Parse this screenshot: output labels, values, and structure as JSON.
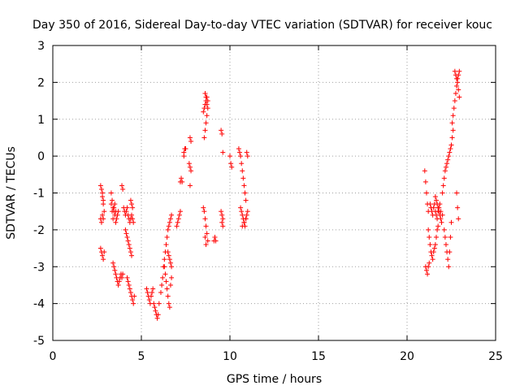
{
  "chart_data": {
    "type": "scatter",
    "title": "Day 350 of 2016, Sidereal Day-to-day VTEC variation (SDTVAR) for receiver kouc",
    "xlabel": "GPS time / hours",
    "ylabel": "SDTVAR / TECUs",
    "xlim": [
      0,
      25
    ],
    "ylim": [
      -5,
      3
    ],
    "xticks": [
      0,
      5,
      10,
      15,
      20,
      25
    ],
    "yticks": [
      -5,
      -4,
      -3,
      -2,
      -1,
      0,
      1,
      2,
      3
    ],
    "grid": true,
    "marker": "+",
    "color": "#ff0000",
    "series": [
      {
        "name": "SDTVAR",
        "x": [
          2.7,
          2.75,
          2.8,
          2.85,
          2.9,
          2.7,
          2.75,
          2.8,
          2.85,
          2.7,
          2.75,
          2.8,
          2.85,
          2.9,
          2.8,
          2.85,
          3.3,
          3.35,
          3.4,
          3.45,
          3.5,
          3.55,
          3.3,
          3.35,
          3.4,
          3.45,
          3.5,
          3.55,
          3.6,
          3.65,
          3.7,
          3.4,
          3.45,
          3.5,
          3.55,
          3.6,
          3.65,
          3.7,
          3.75,
          3.8,
          3.85,
          3.9,
          3.95,
          3.9,
          3.95,
          4.0,
          4.05,
          4.1,
          4.15,
          4.2,
          4.25,
          4.3,
          4.35,
          4.4,
          4.45,
          4.5,
          4.55,
          4.2,
          4.25,
          4.3,
          4.35,
          4.4,
          4.45,
          4.5,
          4.55,
          4.6,
          4.4,
          4.45,
          4.5,
          4.1,
          4.15,
          4.2,
          4.25,
          4.3,
          4.35,
          4.4,
          4.45,
          5.3,
          5.35,
          5.4,
          5.45,
          5.5,
          5.55,
          5.6,
          5.65,
          5.7,
          5.75,
          5.8,
          5.85,
          5.9,
          5.95,
          6.0,
          6.1,
          6.15,
          6.2,
          6.25,
          6.3,
          6.35,
          6.4,
          6.45,
          6.5,
          6.55,
          6.6,
          6.65,
          6.7,
          6.3,
          6.35,
          6.4,
          6.45,
          6.5,
          6.55,
          6.6,
          6.65,
          6.7,
          6.5,
          6.55,
          6.6,
          6.65,
          6.7,
          7.0,
          7.05,
          7.1,
          7.15,
          7.2,
          7.2,
          7.25,
          7.3,
          7.4,
          7.4,
          7.45,
          7.5,
          7.7,
          7.75,
          7.8,
          7.75,
          7.8,
          7.75,
          8.5,
          8.55,
          8.6,
          8.65,
          8.7,
          8.75,
          8.55,
          8.6,
          8.65,
          8.7,
          8.6,
          8.65,
          8.7,
          8.75,
          8.5,
          8.55,
          8.6,
          8.65,
          8.7,
          8.75,
          8.6,
          8.65,
          9.1,
          9.15,
          9.2,
          9.5,
          9.55,
          9.6,
          9.5,
          9.55,
          9.6,
          9.55,
          9.6,
          10.0,
          10.05,
          10.1,
          10.5,
          10.55,
          10.6,
          10.65,
          10.7,
          10.75,
          10.8,
          10.85,
          10.9,
          10.95,
          11.0,
          10.6,
          10.65,
          10.7,
          10.75,
          10.8,
          10.85,
          10.9,
          10.95,
          11.0,
          10.7,
          10.8,
          10.9,
          21.0,
          21.05,
          21.1,
          21.15,
          21.2,
          21.05,
          21.1,
          21.15,
          21.2,
          21.25,
          21.2,
          21.25,
          21.3,
          21.35,
          21.4,
          21.45,
          21.5,
          21.55,
          21.6,
          21.65,
          21.7,
          21.75,
          21.3,
          21.35,
          21.4,
          21.45,
          21.5,
          21.55,
          21.6,
          21.65,
          21.7,
          21.75,
          21.8,
          21.85,
          21.9,
          21.6,
          21.65,
          21.7,
          21.75,
          21.8,
          21.85,
          21.9,
          21.95,
          22.0,
          22.0,
          22.05,
          22.1,
          22.15,
          22.2,
          22.25,
          22.3,
          22.35,
          22.4,
          22.45,
          22.5,
          22.55,
          22.6,
          22.1,
          22.15,
          22.2,
          22.25,
          22.3,
          22.35,
          22.4,
          22.45,
          22.5,
          22.55,
          22.6,
          22.65,
          22.7,
          22.75,
          22.8,
          22.85,
          22.9,
          22.95,
          22.7,
          22.75,
          22.8,
          22.85,
          22.9,
          22.95,
          22.8,
          22.85,
          22.9
        ],
        "y": [
          -0.8,
          -0.9,
          -1.1,
          -1.3,
          -1.5,
          -1.7,
          -1.8,
          -1.6,
          -1.7,
          -2.5,
          -2.6,
          -2.7,
          -2.8,
          -2.6,
          -1.0,
          -1.2,
          -1.0,
          -1.2,
          -1.4,
          -1.5,
          -1.6,
          -1.8,
          -1.3,
          -1.5,
          -1.7,
          -1.4,
          -1.3,
          -1.5,
          -1.7,
          -1.6,
          -1.5,
          -2.9,
          -3.0,
          -3.1,
          -3.2,
          -3.3,
          -3.4,
          -3.5,
          -3.4,
          -3.3,
          -3.2,
          -3.3,
          -3.2,
          -0.8,
          -0.9,
          -1.4,
          -1.5,
          -1.6,
          -1.5,
          -1.4,
          -1.6,
          -1.7,
          -1.8,
          -1.7,
          -1.6,
          -1.7,
          -1.8,
          -3.3,
          -3.4,
          -3.5,
          -3.6,
          -3.7,
          -3.8,
          -3.9,
          -4.0,
          -3.8,
          -1.2,
          -1.3,
          -1.4,
          -2.0,
          -2.1,
          -2.2,
          -2.3,
          -2.4,
          -2.5,
          -2.6,
          -2.7,
          -3.6,
          -3.7,
          -3.8,
          -3.9,
          -4.0,
          -3.8,
          -3.7,
          -3.6,
          -4.0,
          -4.1,
          -4.2,
          -4.3,
          -4.4,
          -4.3,
          -4.0,
          -3.7,
          -3.5,
          -3.3,
          -3.0,
          -2.8,
          -2.6,
          -2.4,
          -2.2,
          -2.0,
          -1.9,
          -1.8,
          -1.7,
          -1.6,
          -3.0,
          -3.2,
          -3.4,
          -3.6,
          -3.8,
          -4.0,
          -4.1,
          -3.5,
          -3.3,
          -2.6,
          -2.7,
          -2.8,
          -2.9,
          -3.0,
          -1.9,
          -1.8,
          -1.7,
          -1.6,
          -1.5,
          -0.7,
          -0.6,
          -0.7,
          0.0,
          0.1,
          0.2,
          0.2,
          -0.2,
          -0.3,
          -0.4,
          -0.8,
          0.4,
          0.5,
          1.2,
          1.3,
          1.4,
          1.5,
          1.6,
          1.5,
          0.5,
          0.7,
          0.9,
          1.1,
          1.7,
          1.6,
          1.4,
          1.3,
          -1.4,
          -1.5,
          -1.7,
          -1.9,
          -2.1,
          -2.3,
          -2.2,
          -2.4,
          -2.3,
          -2.2,
          -2.3,
          0.7,
          0.6,
          0.1,
          -1.5,
          -1.6,
          -1.7,
          -1.8,
          -1.9,
          0.0,
          -0.2,
          -0.3,
          0.2,
          0.1,
          0.0,
          -0.2,
          -0.4,
          -0.6,
          -0.8,
          -1.0,
          -1.2,
          0.1,
          0.0,
          -1.4,
          -1.5,
          -1.6,
          -1.7,
          -1.8,
          -1.9,
          -1.7,
          -1.6,
          -1.5,
          -1.9,
          -1.8,
          -1.7,
          -0.4,
          -0.7,
          -1.0,
          -1.3,
          -1.5,
          -3.0,
          -3.1,
          -3.2,
          -3.0,
          -2.9,
          -2.0,
          -2.2,
          -2.4,
          -2.6,
          -2.7,
          -2.8,
          -2.6,
          -2.5,
          -2.4,
          -2.2,
          -2.0,
          -1.9,
          -1.3,
          -1.4,
          -1.5,
          -1.6,
          -1.4,
          -1.3,
          -1.5,
          -1.6,
          -1.7,
          -1.5,
          -1.4,
          -1.3,
          -1.5,
          -1.1,
          -1.2,
          -1.3,
          -1.4,
          -1.5,
          -1.6,
          -1.7,
          -1.8,
          -1.6,
          -1.0,
          -0.8,
          -0.6,
          -0.4,
          -0.3,
          -0.2,
          -0.1,
          0.0,
          0.1,
          0.2,
          0.3,
          0.5,
          0.7,
          -2.0,
          -2.2,
          -2.4,
          -2.6,
          -2.8,
          -3.0,
          -2.6,
          -2.2,
          -1.8,
          0.9,
          1.1,
          1.3,
          1.5,
          1.7,
          1.9,
          2.1,
          2.2,
          2.3,
          2.3,
          2.2,
          2.1,
          2.0,
          1.8,
          1.6,
          -1.0,
          -1.4,
          -1.7
        ]
      }
    ]
  }
}
